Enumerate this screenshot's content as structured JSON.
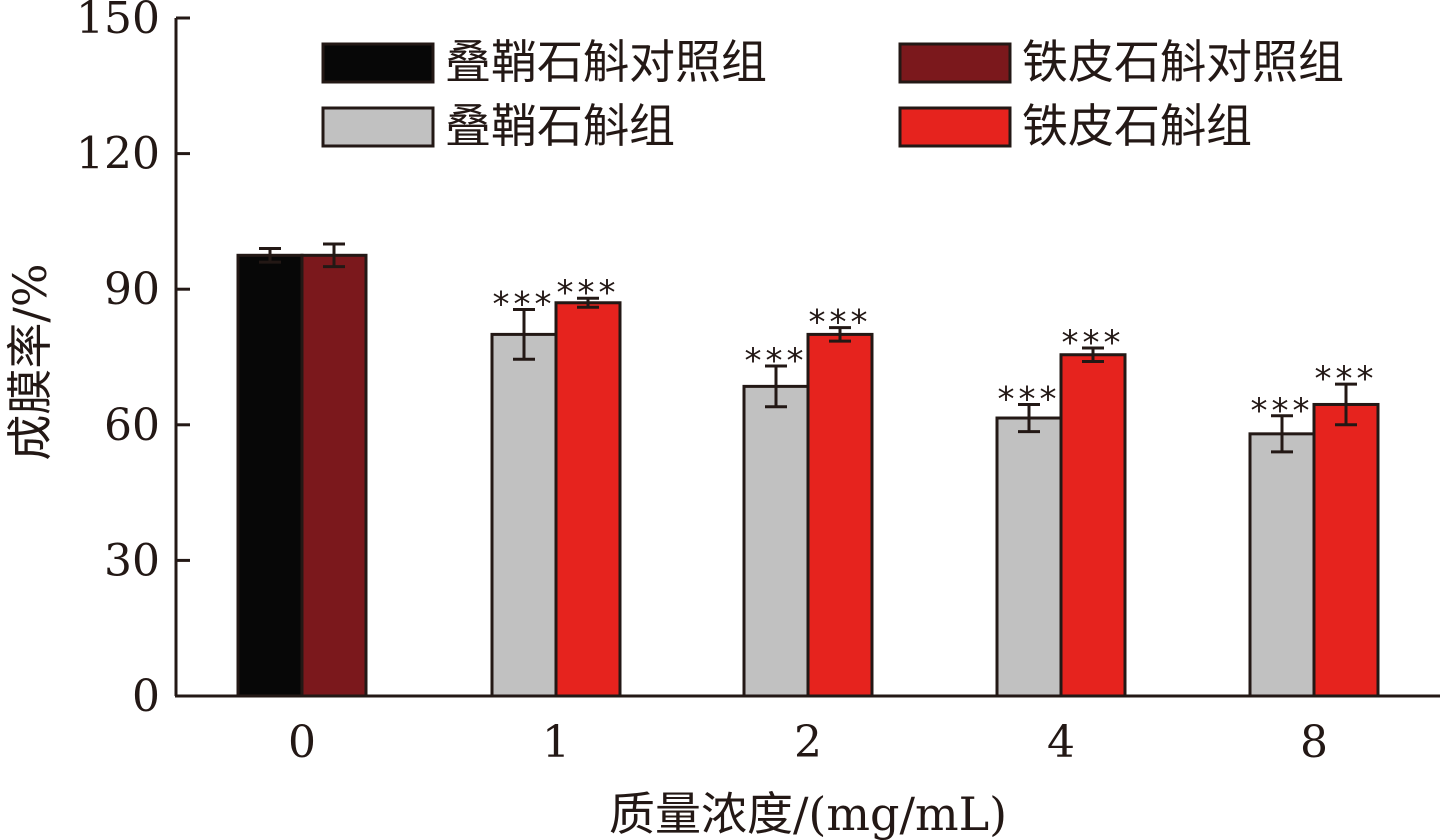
{
  "chart_data": {
    "type": "bar",
    "xlabel": "质量浓度/(mg/mL)",
    "ylabel": "成膜率/%",
    "ylim": [
      0,
      150
    ],
    "yticks": [
      0,
      30,
      60,
      90,
      120,
      150
    ],
    "grid": false,
    "legend_position": "top",
    "categories": [
      "0",
      "1",
      "2",
      "4",
      "8"
    ],
    "significance_mark": "***",
    "series": [
      {
        "name": "叠鞘石斛对照组",
        "color": "#070707",
        "values": [
          97.5,
          null,
          null,
          null,
          null
        ],
        "errors": [
          1.5,
          null,
          null,
          null,
          null
        ],
        "significance": [
          "",
          "",
          "",
          "",
          ""
        ]
      },
      {
        "name": "铁皮石斛对照组",
        "color": "#7b181c",
        "values": [
          97.5,
          null,
          null,
          null,
          null
        ],
        "errors": [
          2.5,
          null,
          null,
          null,
          null
        ],
        "significance": [
          "",
          "",
          "",
          "",
          ""
        ]
      },
      {
        "name": "叠鞘石斛组",
        "color": "#c1c1c1",
        "values": [
          null,
          80,
          68.5,
          61.5,
          58
        ],
        "errors": [
          null,
          5.5,
          4.5,
          3,
          4
        ],
        "significance": [
          "",
          "***",
          "***",
          "***",
          "***"
        ]
      },
      {
        "name": "铁皮石斛组",
        "color": "#e6231e",
        "values": [
          null,
          87,
          80,
          75.5,
          64.5
        ],
        "errors": [
          null,
          1,
          1.5,
          1.5,
          4.5
        ],
        "significance": [
          "",
          "***",
          "***",
          "***",
          "***"
        ]
      }
    ]
  }
}
